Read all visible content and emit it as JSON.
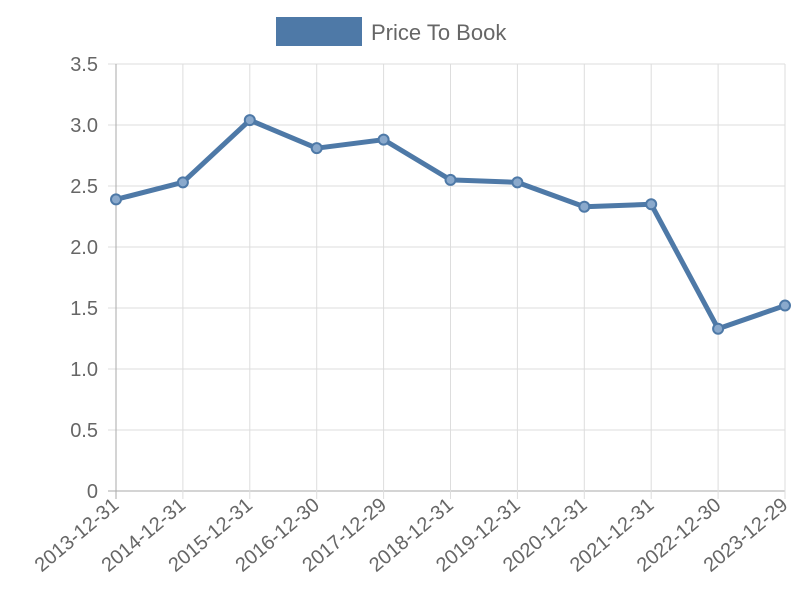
{
  "chart_data": {
    "type": "line",
    "title": "",
    "xlabel": "",
    "ylabel": "",
    "legend": {
      "position": "top",
      "entries": [
        "Price To Book"
      ]
    },
    "grid": true,
    "ylim": [
      0,
      3.5
    ],
    "yticks": [
      "0",
      "0.5",
      "1.0",
      "1.5",
      "2.0",
      "2.5",
      "3.0",
      "3.5"
    ],
    "categories": [
      "2013-12-31",
      "2014-12-31",
      "2015-12-31",
      "2016-12-30",
      "2017-12-29",
      "2018-12-31",
      "2019-12-31",
      "2020-12-31",
      "2021-12-31",
      "2022-12-30",
      "2023-12-29"
    ],
    "series": [
      {
        "name": "Price To Book",
        "color": "#4e79a7",
        "values": [
          2.39,
          2.53,
          3.04,
          2.81,
          2.88,
          2.55,
          2.53,
          2.33,
          2.35,
          1.33,
          1.52
        ]
      }
    ]
  }
}
